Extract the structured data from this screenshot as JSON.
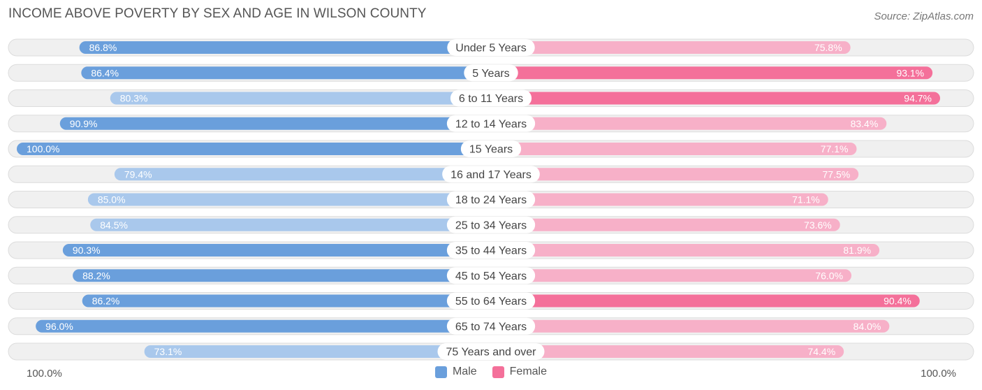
{
  "title": "INCOME ABOVE POVERTY BY SEX AND AGE IN WILSON COUNTY",
  "source": "Source: ZipAtlas.com",
  "axis": {
    "left_label": "100.0%",
    "right_label": "100.0%"
  },
  "legend": {
    "male": "Male",
    "female": "Female"
  },
  "colors": {
    "male_strong": "#6a9fdc",
    "male_light": "#a9c8ec",
    "female_strong": "#f4709a",
    "female_light": "#f7b0c8",
    "track": "#f0f0f0",
    "track_border": "#dcdcdc"
  },
  "chart_data": {
    "type": "bar",
    "orientation": "diverging-horizontal",
    "title": "INCOME ABOVE POVERTY BY SEX AND AGE IN WILSON COUNTY",
    "categories": [
      "Under 5 Years",
      "5 Years",
      "6 to 11 Years",
      "12 to 14 Years",
      "15 Years",
      "16 and 17 Years",
      "18 to 24 Years",
      "25 to 34 Years",
      "35 to 44 Years",
      "45 to 54 Years",
      "55 to 64 Years",
      "65 to 74 Years",
      "75 Years and over"
    ],
    "series": [
      {
        "name": "Male",
        "values": [
          86.8,
          86.4,
          80.3,
          90.9,
          100.0,
          79.4,
          85.0,
          84.5,
          90.3,
          88.2,
          86.2,
          96.0,
          73.1
        ],
        "labels": [
          "86.8%",
          "86.4%",
          "80.3%",
          "90.9%",
          "100.0%",
          "79.4%",
          "85.0%",
          "84.5%",
          "90.3%",
          "88.2%",
          "86.2%",
          "96.0%",
          "73.1%"
        ]
      },
      {
        "name": "Female",
        "values": [
          75.8,
          93.1,
          94.7,
          83.4,
          77.1,
          77.5,
          71.1,
          73.6,
          81.9,
          76.0,
          90.4,
          84.0,
          74.4
        ],
        "labels": [
          "75.8%",
          "93.1%",
          "94.7%",
          "83.4%",
          "77.1%",
          "77.5%",
          "71.1%",
          "73.6%",
          "81.9%",
          "76.0%",
          "90.4%",
          "84.0%",
          "74.4%"
        ]
      }
    ],
    "xlim": [
      0,
      100
    ],
    "legend_position": "bottom-center"
  }
}
